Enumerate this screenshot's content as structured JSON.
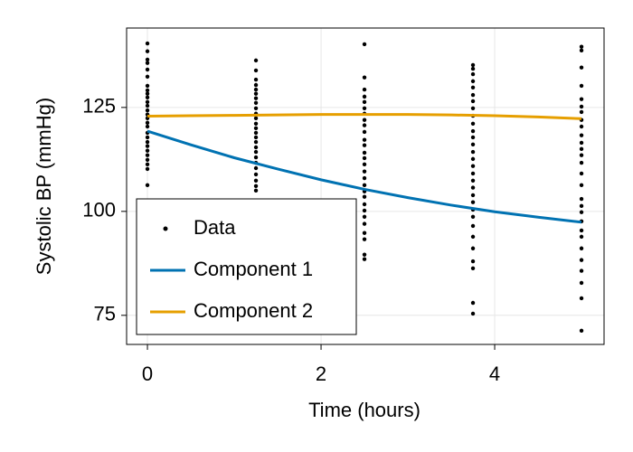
{
  "chart_data": {
    "type": "scatter",
    "x_label": "Time (hours)",
    "y_label": "Systolic BP (mmHg)",
    "xlim": [
      -0.24,
      5.26
    ],
    "ylim": [
      68.0,
      144.1
    ],
    "xticks": [
      0,
      2,
      4
    ],
    "yticks": [
      75,
      100,
      125
    ],
    "grid": true,
    "legend": "bottom left",
    "series": [
      {
        "name": "Data",
        "type": "scatter",
        "color": "#000000",
        "x": [
          0,
          0,
          0,
          0,
          0,
          0,
          0,
          0,
          0,
          0,
          0,
          0,
          0,
          0,
          0,
          0,
          0,
          0,
          0,
          0,
          0,
          0,
          0,
          0,
          0,
          0,
          0,
          1.25,
          1.25,
          1.25,
          1.25,
          1.25,
          1.25,
          1.25,
          1.25,
          1.25,
          1.25,
          1.25,
          1.25,
          1.25,
          1.25,
          1.25,
          1.25,
          1.25,
          1.25,
          1.25,
          1.25,
          1.25,
          1.25,
          1.25,
          1.25,
          1.25,
          2.5,
          2.5,
          2.5,
          2.5,
          2.5,
          2.5,
          2.5,
          2.5,
          2.5,
          2.5,
          2.5,
          2.5,
          2.5,
          2.5,
          2.5,
          2.5,
          2.5,
          2.5,
          2.5,
          2.5,
          2.5,
          2.5,
          2.5,
          2.5,
          2.5,
          2.5,
          2.5,
          2.5,
          3.75,
          3.75,
          3.75,
          3.75,
          3.75,
          3.75,
          3.75,
          3.75,
          3.75,
          3.75,
          3.75,
          3.75,
          3.75,
          3.75,
          3.75,
          3.75,
          3.75,
          3.75,
          3.75,
          3.75,
          3.75,
          3.75,
          3.75,
          3.75,
          3.75,
          3.75,
          3.75,
          3.75,
          3.75,
          3.75,
          5,
          5,
          5,
          5,
          5,
          5,
          5,
          5,
          5,
          5,
          5,
          5,
          5,
          5,
          5,
          5,
          5,
          5,
          5,
          5,
          5,
          5,
          5,
          5,
          5,
          5,
          5,
          5
        ],
        "values": [
          140.4,
          138.5,
          136.5,
          135.7,
          134.1,
          132.4,
          130.2,
          129.1,
          128.3,
          127.4,
          126.3,
          125.4,
          124.3,
          123.3,
          122.4,
          121.3,
          120.4,
          118.9,
          117.8,
          116.7,
          115.7,
          114.6,
          113.5,
          112.4,
          111.3,
          110.2,
          106.3,
          136.3,
          133.9,
          131.7,
          130.4,
          129.3,
          128.3,
          127.2,
          126.1,
          124.8,
          123.5,
          122.4,
          121.1,
          120.0,
          118.9,
          117.8,
          116.7,
          115.4,
          114.3,
          113.0,
          111.7,
          110.4,
          108.9,
          107.4,
          106.1,
          105.0,
          140.2,
          132.2,
          129.3,
          127.6,
          126.3,
          124.8,
          123.5,
          122.0,
          120.7,
          119.1,
          117.2,
          115.9,
          114.1,
          112.8,
          111.3,
          109.6,
          108.0,
          106.3,
          104.8,
          103.5,
          101.7,
          100.2,
          98.7,
          97.0,
          94.8,
          93.3,
          89.6,
          88.5,
          135.2,
          134.3,
          133.0,
          131.3,
          129.8,
          128.0,
          126.5,
          124.8,
          123.0,
          121.1,
          119.3,
          117.8,
          116.1,
          114.3,
          112.6,
          110.9,
          109.1,
          107.4,
          105.7,
          103.9,
          102.2,
          100.4,
          98.7,
          96.5,
          93.9,
          91.1,
          88.0,
          86.3,
          78.0,
          75.4,
          139.6,
          138.7,
          134.6,
          130.2,
          127.0,
          125.2,
          123.9,
          122.0,
          120.4,
          118.3,
          116.5,
          115.0,
          113.5,
          111.7,
          109.1,
          106.3,
          103.0,
          101.3,
          99.8,
          97.6,
          95.4,
          93.9,
          91.1,
          88.3,
          85.7,
          82.8,
          79.1,
          71.3
        ]
      },
      {
        "name": "Component 1",
        "type": "line",
        "color": "#0072b2",
        "x": [
          0,
          0.5,
          1,
          1.5,
          2,
          2.5,
          3,
          3.5,
          4,
          4.5,
          5
        ],
        "values": [
          119.3,
          116.0,
          112.9,
          110.2,
          107.6,
          105.3,
          103.3,
          101.5,
          99.9,
          98.6,
          97.4
        ]
      },
      {
        "name": "Component 2",
        "type": "line",
        "color": "#e69f00",
        "x": [
          0,
          0.5,
          1,
          1.5,
          2,
          2.5,
          3,
          3.5,
          4,
          4.5,
          5
        ],
        "values": [
          122.9,
          123.0,
          123.1,
          123.2,
          123.3,
          123.3,
          123.3,
          123.2,
          123.0,
          122.7,
          122.3
        ]
      }
    ]
  }
}
